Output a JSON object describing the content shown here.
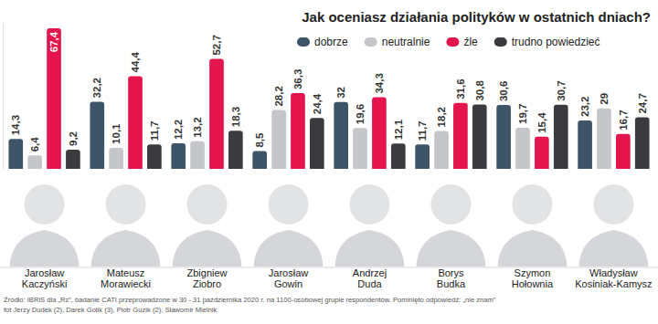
{
  "chart_data": {
    "type": "bar",
    "title": "Jak oceniasz działania polityków w ostatnich dniach?",
    "categories": [
      "Jarosław Kaczyński",
      "Mateusz Morawiecki",
      "Zbigniew Ziobro",
      "Jarosław Gowin",
      "Andrzej Duda",
      "Borys Budka",
      "Szymon Hołownia",
      "Władysław Kosiniak-Kamysz"
    ],
    "series": [
      {
        "name": "dobrze",
        "color": "#3e5569",
        "values": [
          14.3,
          32.2,
          12.2,
          8.5,
          32,
          11.7,
          30.6,
          23.2
        ],
        "value_labels": [
          "14,3",
          "32,2",
          "12,2",
          "8,5",
          "32",
          "11,7",
          "30,6",
          "23,2"
        ]
      },
      {
        "name": "neutralnie",
        "color": "#c4c6c9",
        "values": [
          6.4,
          10.1,
          13.2,
          28.2,
          19.6,
          18.2,
          19.7,
          29
        ],
        "value_labels": [
          "6,4",
          "10,1",
          "13,2",
          "28,2",
          "19,6",
          "18,2",
          "19,7",
          "29"
        ]
      },
      {
        "name": "źle",
        "color": "#e3154c",
        "values": [
          67.4,
          44.4,
          52.7,
          36.3,
          34.3,
          31.6,
          15.4,
          16.7
        ],
        "value_labels": [
          "67,4",
          "44,4",
          "52,7",
          "36,3",
          "34,3",
          "31,6",
          "15,4",
          "16,7"
        ]
      },
      {
        "name": "trudno powiedzieć",
        "color": "#3b3b3f",
        "values": [
          9.2,
          11.7,
          18.3,
          24.4,
          12.1,
          30.8,
          30.7,
          24.7
        ],
        "value_labels": [
          "9,2",
          "11,7",
          "18,3",
          "24,4",
          "12,1",
          "30,8",
          "30,7",
          "24,7"
        ]
      }
    ],
    "ylim": [
      0,
      70
    ],
    "data_labels": true,
    "tick_labels": false,
    "grid": false,
    "legend": "top-right",
    "annotations": [
      "Źródło: IBRiS dla „Rz”, badanie CATI przeprowadzone w 30 - 31 października 2020 r. na 1100-osobowej grupie respondentów. Pominięto odpowiedź: „nie znam”",
      "fot Jerzy Dudek (2), Darek Golik (3), Piotr Guzik (2), Sławomir Mielnik"
    ]
  }
}
